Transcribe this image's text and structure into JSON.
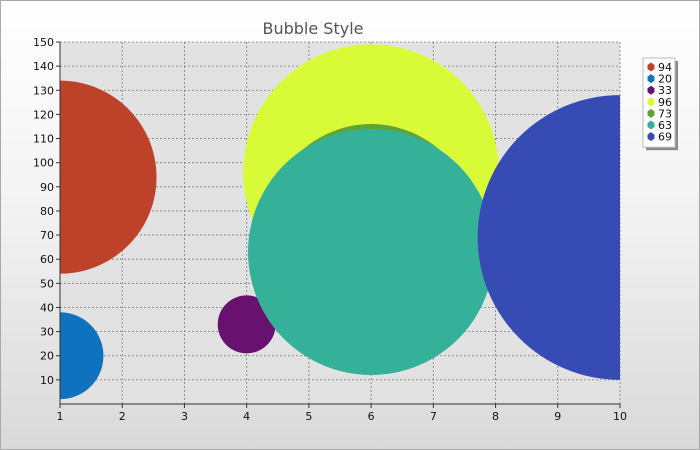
{
  "chart_data": {
    "type": "bubble",
    "title": "Bubble Style",
    "xlabel": "",
    "ylabel": "",
    "xlim": [
      1,
      10
    ],
    "ylim": [
      0,
      150
    ],
    "xticks": [
      1,
      2,
      3,
      4,
      5,
      6,
      7,
      8,
      9,
      10
    ],
    "yticks": [
      10,
      20,
      30,
      40,
      50,
      60,
      70,
      80,
      90,
      100,
      110,
      120,
      130,
      140,
      150
    ],
    "grid": true,
    "legend_position": "right",
    "series": [
      {
        "name": "94",
        "x": 1,
        "y": 94,
        "size": 40,
        "color": "#be422a"
      },
      {
        "name": "20",
        "x": 1,
        "y": 20,
        "size": 18,
        "color": "#0f72be"
      },
      {
        "name": "33",
        "x": 4,
        "y": 33,
        "size": 12,
        "color": "#69116f"
      },
      {
        "name": "96",
        "x": 6,
        "y": 96,
        "size": 53,
        "color": "#d9fb37"
      },
      {
        "name": "73",
        "x": 6,
        "y": 73,
        "size": 43,
        "color": "#5fa535"
      },
      {
        "name": "63",
        "x": 6,
        "y": 63,
        "size": 51,
        "color": "#35b19a"
      },
      {
        "name": "69",
        "x": 10,
        "y": 69,
        "size": 59,
        "color": "#364bb4"
      }
    ]
  }
}
